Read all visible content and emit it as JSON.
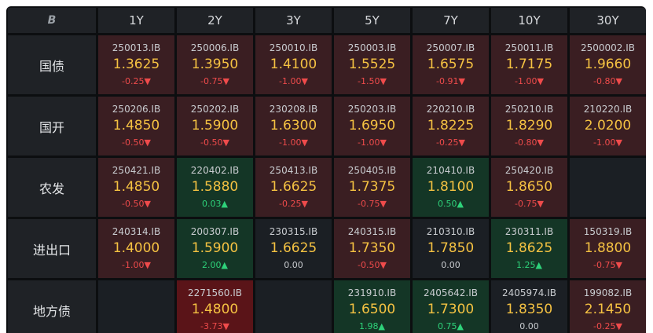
{
  "header": {
    "logo_text": "B",
    "columns": [
      "1Y",
      "2Y",
      "3Y",
      "5Y",
      "7Y",
      "10Y",
      "30Y"
    ]
  },
  "colors": {
    "down": "#3a1e22",
    "deep_down": "#5a1418",
    "up": "#143626",
    "flat": "#1b1f24",
    "rate_text": "#f5c242",
    "negative": "#ef4b4b",
    "positive": "#2ed27a"
  },
  "rows": [
    {
      "label": "国债",
      "cells": [
        {
          "code": "250013.IB",
          "rate": "1.3625",
          "change": "-0.25▼",
          "dir": "down"
        },
        {
          "code": "250006.IB",
          "rate": "1.3950",
          "change": "-0.75▼",
          "dir": "down"
        },
        {
          "code": "250010.IB",
          "rate": "1.4100",
          "change": "-1.00▼",
          "dir": "down"
        },
        {
          "code": "250003.IB",
          "rate": "1.5525",
          "change": "-1.50▼",
          "dir": "down"
        },
        {
          "code": "250007.IB",
          "rate": "1.6575",
          "change": "-0.91▼",
          "dir": "down"
        },
        {
          "code": "250011.IB",
          "rate": "1.7175",
          "change": "-1.00▼",
          "dir": "down"
        },
        {
          "code": "2500002.IB",
          "rate": "1.9660",
          "change": "-0.80▼",
          "dir": "down"
        }
      ]
    },
    {
      "label": "国开",
      "cells": [
        {
          "code": "250206.IB",
          "rate": "1.4850",
          "change": "-0.50▼",
          "dir": "down"
        },
        {
          "code": "250202.IB",
          "rate": "1.5900",
          "change": "-0.50▼",
          "dir": "down"
        },
        {
          "code": "230208.IB",
          "rate": "1.6300",
          "change": "-1.00▼",
          "dir": "down"
        },
        {
          "code": "250203.IB",
          "rate": "1.6950",
          "change": "-1.00▼",
          "dir": "down"
        },
        {
          "code": "220210.IB",
          "rate": "1.8225",
          "change": "-0.25▼",
          "dir": "down"
        },
        {
          "code": "250210.IB",
          "rate": "1.8290",
          "change": "-0.80▼",
          "dir": "down"
        },
        {
          "code": "210220.IB",
          "rate": "2.0200",
          "change": "-1.00▼",
          "dir": "down"
        }
      ]
    },
    {
      "label": "农发",
      "cells": [
        {
          "code": "250421.IB",
          "rate": "1.4850",
          "change": "-0.50▼",
          "dir": "down"
        },
        {
          "code": "220402.IB",
          "rate": "1.5880",
          "change": "0.03▲",
          "dir": "up"
        },
        {
          "code": "250413.IB",
          "rate": "1.6625",
          "change": "-0.25▼",
          "dir": "down"
        },
        {
          "code": "250405.IB",
          "rate": "1.7375",
          "change": "-0.75▼",
          "dir": "down"
        },
        {
          "code": "210410.IB",
          "rate": "1.8100",
          "change": "0.50▲",
          "dir": "up"
        },
        {
          "code": "250420.IB",
          "rate": "1.8650",
          "change": "-0.75▼",
          "dir": "down"
        },
        {
          "code": "",
          "rate": "",
          "change": "",
          "dir": "empty"
        }
      ]
    },
    {
      "label": "进出口",
      "cells": [
        {
          "code": "240314.IB",
          "rate": "1.4000",
          "change": "-1.00▼",
          "dir": "down"
        },
        {
          "code": "200307.IB",
          "rate": "1.5900",
          "change": "2.00▲",
          "dir": "up"
        },
        {
          "code": "230315.IB",
          "rate": "1.6625",
          "change": "0.00",
          "dir": "flat"
        },
        {
          "code": "240315.IB",
          "rate": "1.7350",
          "change": "-0.50▼",
          "dir": "down"
        },
        {
          "code": "210310.IB",
          "rate": "1.7850",
          "change": "0.00",
          "dir": "flat"
        },
        {
          "code": "230311.IB",
          "rate": "1.8625",
          "change": "1.25▲",
          "dir": "up"
        },
        {
          "code": "150319.IB",
          "rate": "1.8800",
          "change": "-0.75▼",
          "dir": "down"
        }
      ]
    },
    {
      "label": "地方债",
      "cells": [
        {
          "code": "",
          "rate": "",
          "change": "",
          "dir": "empty"
        },
        {
          "code": "2271560.IB",
          "rate": "1.4800",
          "change": "-3.73▼",
          "dir": "deep"
        },
        {
          "code": "",
          "rate": "",
          "change": "",
          "dir": "empty"
        },
        {
          "code": "231910.IB",
          "rate": "1.6500",
          "change": "1.98▲",
          "dir": "up"
        },
        {
          "code": "2405642.IB",
          "rate": "1.7300",
          "change": "0.75▲",
          "dir": "up"
        },
        {
          "code": "2405974.IB",
          "rate": "1.8350",
          "change": "0.00",
          "dir": "flat"
        },
        {
          "code": "199082.IB",
          "rate": "2.1450",
          "change": "-0.25▼",
          "dir": "down"
        }
      ]
    }
  ]
}
